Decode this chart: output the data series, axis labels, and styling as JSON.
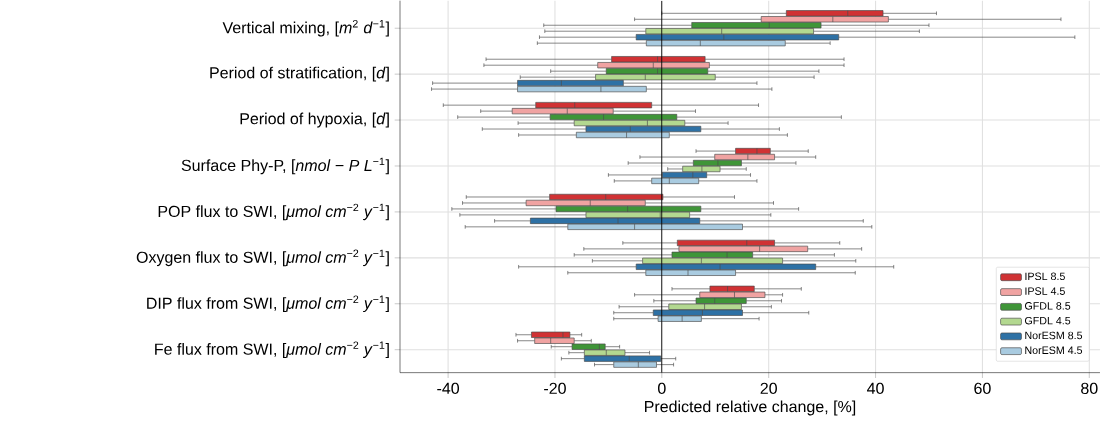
{
  "chart_data": {
    "type": "box",
    "orientation": "horizontal",
    "xlabel": "Predicted relative change, [%]",
    "categories": [
      "Vertical mixing, [*m*$^{2}$ *d*$^{−1}$]",
      "Period of stratification, [*d*]",
      "Period of hypoxia, [*d*]",
      "Surface Phy-P, [*nmol* − *P L*$^{−1}$]",
      "POP flux to SWI, [*μmol cm*$^{−2}$ *y*$^{−1}$]",
      "Oxygen flux to SWI, [*μmol cm*$^{−2}$ *y*$^{−1}$]",
      "DIP flux from SWI, [*μmol cm*$^{−2}$ *y*$^{−1}$]",
      "Fe flux from SWI, [*μmol cm*$^{−2}$ *y*$^{−1}$]"
    ],
    "xlim": [
      -49,
      82
    ],
    "xticks": [
      -40,
      -20,
      0,
      20,
      40,
      60,
      80
    ],
    "grid": true,
    "legend": "bottom right",
    "series": [
      {
        "name": "IPSL 8.5",
        "color": "#d03234",
        "boxes": [
          {
            "low": 0,
            "q1": 23.3,
            "median": 34.8,
            "q3": 41.4,
            "high": 51.4
          },
          {
            "low": -32.9,
            "q1": -9.4,
            "median": -0.8,
            "q3": 8.1,
            "high": 34.1
          },
          {
            "low": -40.9,
            "q1": -23.6,
            "median": -16.3,
            "q3": -1.9,
            "high": 18.1
          },
          {
            "low": 6.4,
            "q1": 13.8,
            "median": 17.8,
            "q3": 20.3,
            "high": 27.4
          },
          {
            "low": -36.6,
            "q1": -21,
            "median": -10.5,
            "q3": 0.2,
            "high": 13.6
          },
          {
            "low": -7.3,
            "q1": 2.9,
            "median": 15.9,
            "q3": 21.1,
            "high": 33.3
          },
          {
            "low": 1.9,
            "q1": 9,
            "median": 12.3,
            "q3": 17.3,
            "high": 26.1
          },
          {
            "low": -27.3,
            "q1": -24.4,
            "median": -18.5,
            "q3": -17.2,
            "high": -15
          }
        ]
      },
      {
        "name": "IPSL 4.5",
        "color": "#f0a3a2",
        "boxes": [
          {
            "low": -5.1,
            "q1": 18.6,
            "median": 32,
            "q3": 42.4,
            "high": 74.7
          },
          {
            "low": -33.3,
            "q1": -12,
            "median": -1.6,
            "q3": 8.9,
            "high": 34.1
          },
          {
            "low": -33.9,
            "q1": -28,
            "median": -17.7,
            "q3": -9.1,
            "high": 6.3
          },
          {
            "low": -4.1,
            "q1": 9.9,
            "median": 16.1,
            "q3": 21.1,
            "high": 28.8
          },
          {
            "low": -37.3,
            "q1": -25.4,
            "median": -13.4,
            "q3": -3.1,
            "high": 20.9
          },
          {
            "low": -14.6,
            "q1": 3.2,
            "median": 18.3,
            "q3": 27.3,
            "high": 37.4
          },
          {
            "low": -5.1,
            "q1": 7.1,
            "median": 13.6,
            "q3": 19.3,
            "high": 22.6
          },
          {
            "low": -27,
            "q1": -23.8,
            "median": -20.8,
            "q3": -16.4,
            "high": -13.2
          }
        ]
      },
      {
        "name": "GFDL 8.5",
        "color": "#3f9538",
        "boxes": [
          {
            "low": -22.1,
            "q1": 5.6,
            "median": 20.1,
            "q3": 29.8,
            "high": 50
          },
          {
            "low": -20.8,
            "q1": -10.4,
            "median": -0.8,
            "q3": 8.6,
            "high": 29.4
          },
          {
            "low": -38.2,
            "q1": -20.9,
            "median": -10.9,
            "q3": 2.8,
            "high": 33.6
          },
          {
            "low": -6.3,
            "q1": 5.9,
            "median": 10.5,
            "q3": 14.9,
            "high": 25.1
          },
          {
            "low": -39.3,
            "q1": -19.8,
            "median": -6.4,
            "q3": 7.3,
            "high": 25.6
          },
          {
            "low": -16.4,
            "q1": 1.9,
            "median": 12.2,
            "q3": 17,
            "high": 32.3
          },
          {
            "low": -1.5,
            "q1": 6.4,
            "median": 9.9,
            "q3": 15.8,
            "high": 22.4
          },
          {
            "low": -20.7,
            "q1": -16.8,
            "median": -11.7,
            "q3": -10.6,
            "high": -7.9
          }
        ]
      },
      {
        "name": "GFDL 4.5",
        "color": "#b3d890",
        "boxes": [
          {
            "low": -21.9,
            "q1": -3,
            "median": 11.2,
            "q3": 28.4,
            "high": 48.2
          },
          {
            "low": -26.5,
            "q1": -12.4,
            "median": -3.1,
            "q3": 10,
            "high": 28.5
          },
          {
            "low": -26.9,
            "q1": -16.4,
            "median": -2.7,
            "q3": 4.3,
            "high": 12.4
          },
          {
            "low": 1.1,
            "q1": 3.9,
            "median": 7.5,
            "q3": 10.9,
            "high": 15.8
          },
          {
            "low": -37.8,
            "q1": -14.2,
            "median": -0.3,
            "q3": 5.2,
            "high": 20.4
          },
          {
            "low": -13,
            "q1": -3.6,
            "median": 7.4,
            "q3": 22.6,
            "high": 36.3
          },
          {
            "low": -8,
            "q1": 1.3,
            "median": 8,
            "q3": 14.9,
            "high": 20.5
          },
          {
            "low": -17.4,
            "q1": -14.5,
            "median": -10.4,
            "q3": -6.9,
            "high": -2.3
          }
        ]
      },
      {
        "name": "NorESM 8.5",
        "color": "#2e71a5",
        "boxes": [
          {
            "low": -22.9,
            "q1": -4.8,
            "median": 11.6,
            "q3": 33.1,
            "high": 77.3
          },
          {
            "low": -42.9,
            "q1": -27,
            "median": -18.8,
            "q3": -7.2,
            "high": 17.8
          },
          {
            "low": -33.6,
            "q1": -14.2,
            "median": -5.9,
            "q3": 7.3,
            "high": 22
          },
          {
            "low": -10,
            "q1": 0.1,
            "median": 5.8,
            "q3": 8.4,
            "high": 16.6
          },
          {
            "low": -31.3,
            "q1": -24.6,
            "median": -8.2,
            "q3": 7.1,
            "high": 37.7
          },
          {
            "low": -26.8,
            "q1": -4.8,
            "median": 10.9,
            "q3": 28.8,
            "high": 43.4
          },
          {
            "low": -9,
            "q1": -1.6,
            "median": 7.6,
            "q3": 15.1,
            "high": 27.5
          },
          {
            "low": -18.8,
            "q1": -14.5,
            "median": -6.1,
            "q3": -0.2,
            "high": 2.6
          }
        ]
      },
      {
        "name": "NorESM 4.5",
        "color": "#a9cbe0",
        "boxes": [
          {
            "low": -23.3,
            "q1": -2.9,
            "median": 7.2,
            "q3": 23.1,
            "high": 31.5
          },
          {
            "low": -43.1,
            "q1": -27,
            "median": -11.4,
            "q3": -2.9,
            "high": 20.6
          },
          {
            "low": -26.8,
            "q1": -16,
            "median": -6.6,
            "q3": 1.4,
            "high": 23.5
          },
          {
            "low": -8.9,
            "q1": -1.9,
            "median": 1.4,
            "q3": 6.9,
            "high": 17.8
          },
          {
            "low": -36.8,
            "q1": -17.6,
            "median": -5.1,
            "q3": 15.1,
            "high": 39.3
          },
          {
            "low": -17.6,
            "q1": -3,
            "median": 4.9,
            "q3": 13.8,
            "high": 36.2
          },
          {
            "low": -9,
            "q1": -0.7,
            "median": 3.8,
            "q3": 7.4,
            "high": 18.2
          },
          {
            "low": -12.6,
            "q1": -9,
            "median": -4.4,
            "q3": -1,
            "high": 2.2
          }
        ]
      }
    ]
  }
}
